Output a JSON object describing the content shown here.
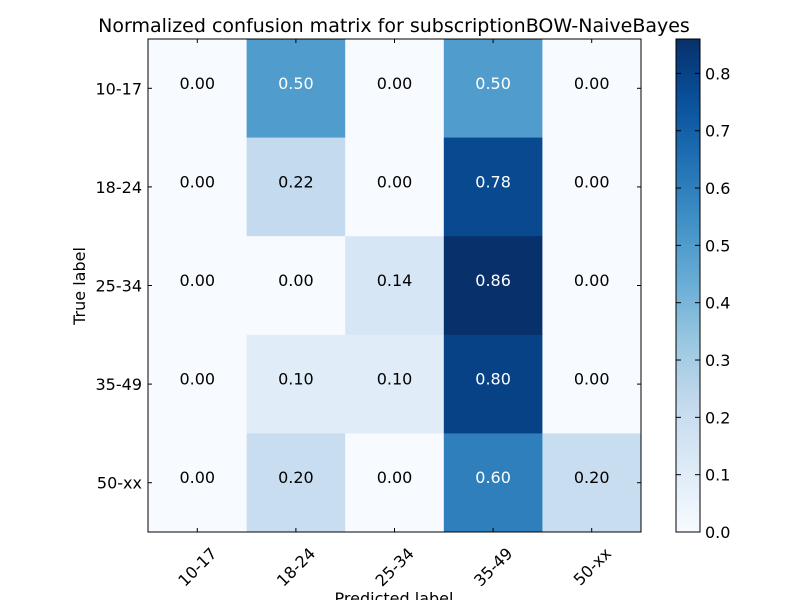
{
  "chart_data": {
    "type": "heatmap",
    "title": "Normalized confusion matrix for subscriptionBOW-NaiveBayes",
    "xlabel": "Predicted label",
    "ylabel": "True label",
    "x_categories": [
      "10-17",
      "18-24",
      "25-34",
      "35-49",
      "50-xx"
    ],
    "y_categories": [
      "10-17",
      "18-24",
      "25-34",
      "35-49",
      "50-xx"
    ],
    "values": [
      [
        0.0,
        0.5,
        0.0,
        0.5,
        0.0
      ],
      [
        0.0,
        0.22,
        0.0,
        0.78,
        0.0
      ],
      [
        0.0,
        0.0,
        0.14,
        0.86,
        0.0
      ],
      [
        0.0,
        0.1,
        0.1,
        0.8,
        0.0
      ],
      [
        0.0,
        0.2,
        0.0,
        0.6,
        0.2
      ]
    ],
    "colormap": "Blues",
    "colorbar": {
      "range": [
        0.0,
        0.86
      ],
      "ticks": [
        0.0,
        0.1,
        0.2,
        0.3,
        0.4,
        0.5,
        0.6,
        0.7,
        0.8
      ]
    },
    "grid": false
  }
}
